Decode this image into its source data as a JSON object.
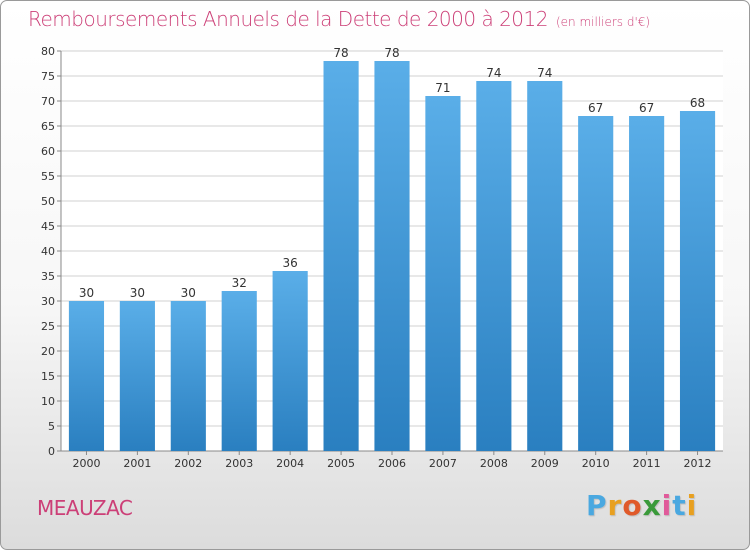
{
  "chart_data": {
    "type": "bar",
    "title": "Remboursements Annuels de la Dette de 2000 à 2012",
    "unit": "(en milliers d'€)",
    "categories": [
      "2000",
      "2001",
      "2002",
      "2003",
      "2004",
      "2005",
      "2006",
      "2007",
      "2008",
      "2009",
      "2010",
      "2011",
      "2012"
    ],
    "values": [
      30,
      30,
      30,
      32,
      36,
      78,
      78,
      71,
      74,
      74,
      67,
      67,
      68
    ],
    "ylim": [
      0,
      80
    ],
    "yticks": [
      0,
      5,
      10,
      15,
      20,
      25,
      30,
      35,
      40,
      45,
      50,
      55,
      60,
      65,
      70,
      75,
      80
    ],
    "grid": true,
    "bar_color_top": "#5aaee8",
    "bar_color_bottom": "#2a7fc0"
  },
  "commune": "MEAUZAC",
  "logo": {
    "letters": [
      "P",
      "r",
      "o",
      "x",
      "i",
      "t",
      "i"
    ],
    "colors": [
      "#4aa8e0",
      "#e8a020",
      "#e05a2a",
      "#3a9a3a",
      "#e05a9a",
      "#4aa8e0",
      "#e8a020"
    ]
  },
  "colors": {
    "title": "#cc3f77",
    "grid": "#d0d0d0",
    "axis": "#888888"
  }
}
